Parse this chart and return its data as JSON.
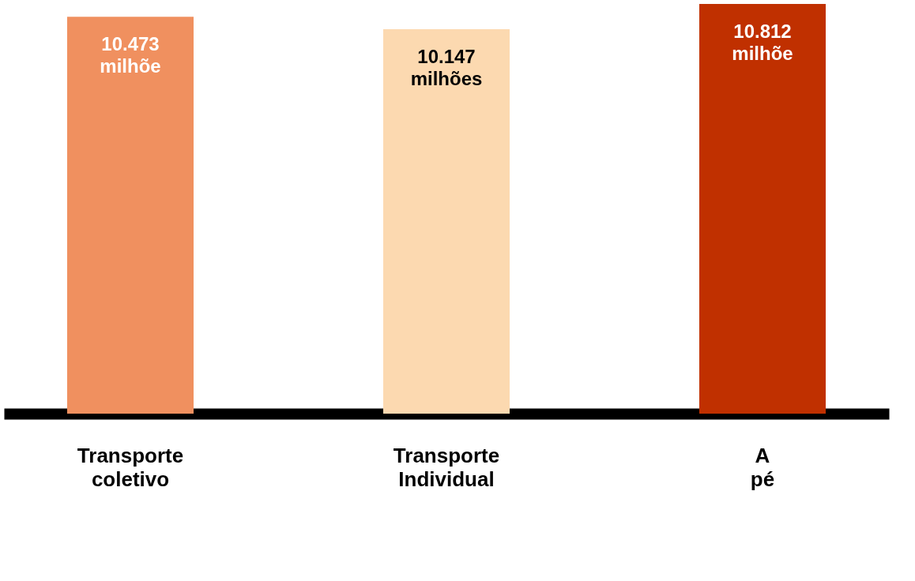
{
  "chart_data": {
    "type": "bar",
    "categories": [
      "Transporte coletivo",
      "Transporte Individual",
      "A pé"
    ],
    "values": [
      10.473,
      10.147,
      10.812
    ],
    "colors": [
      "#f0905f",
      "#fcd9b0",
      "#c03000"
    ],
    "value_labels": [
      "10.473 milhõe",
      "10.147 milhões",
      "10.812 milhõe"
    ],
    "grid": false
  }
}
